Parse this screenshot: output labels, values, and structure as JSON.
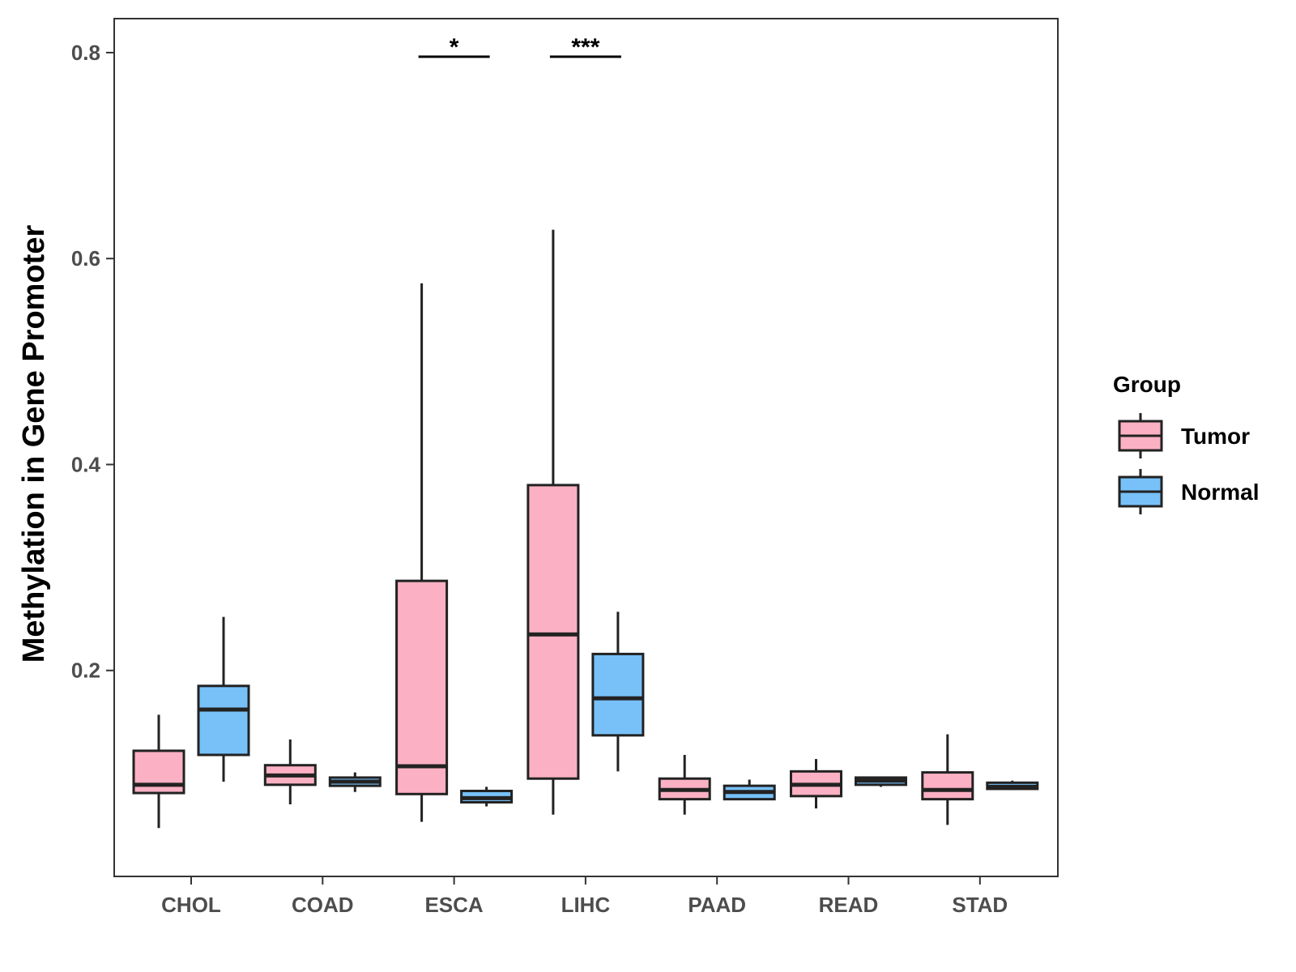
{
  "chart_data": {
    "type": "boxplot",
    "title": "",
    "xlabel": "",
    "ylabel": "Methylation in Gene Promoter",
    "ylim": [
      0.0,
      0.833
    ],
    "yticks": [
      "0.2",
      "0.4",
      "0.6",
      "0.8"
    ],
    "yticks_values": [
      0.2,
      0.4,
      0.6,
      0.8
    ],
    "categories": [
      "CHOL",
      "COAD",
      "ESCA",
      "LIHC",
      "PAAD",
      "READ",
      "STAD"
    ],
    "legend": {
      "title": "Group",
      "entries": [
        {
          "name": "Tumor",
          "color": "#FBB1C3"
        },
        {
          "name": "Normal",
          "color": "#77C1F8"
        }
      ]
    },
    "series": [
      {
        "name": "Tumor",
        "color": "#FBB1C3",
        "boxes": [
          {
            "category": "CHOL",
            "min": 0.047,
            "q1": 0.081,
            "median": 0.089,
            "q3": 0.122,
            "max": 0.157
          },
          {
            "category": "COAD",
            "min": 0.07,
            "q1": 0.089,
            "median": 0.098,
            "q3": 0.108,
            "max": 0.133
          },
          {
            "category": "ESCA",
            "min": 0.053,
            "q1": 0.08,
            "median": 0.107,
            "q3": 0.287,
            "max": 0.576
          },
          {
            "category": "LIHC",
            "min": 0.06,
            "q1": 0.095,
            "median": 0.235,
            "q3": 0.38,
            "max": 0.628
          },
          {
            "category": "PAAD",
            "min": 0.06,
            "q1": 0.075,
            "median": 0.084,
            "q3": 0.095,
            "max": 0.118
          },
          {
            "category": "READ",
            "min": 0.066,
            "q1": 0.078,
            "median": 0.089,
            "q3": 0.102,
            "max": 0.114
          },
          {
            "category": "STAD",
            "min": 0.05,
            "q1": 0.075,
            "median": 0.084,
            "q3": 0.101,
            "max": 0.138
          }
        ]
      },
      {
        "name": "Normal",
        "color": "#77C1F8",
        "boxes": [
          {
            "category": "CHOL",
            "min": 0.092,
            "q1": 0.118,
            "median": 0.162,
            "q3": 0.185,
            "max": 0.252
          },
          {
            "category": "COAD",
            "min": 0.082,
            "q1": 0.088,
            "median": 0.092,
            "q3": 0.096,
            "max": 0.101
          },
          {
            "category": "ESCA",
            "min": 0.068,
            "q1": 0.072,
            "median": 0.076,
            "q3": 0.083,
            "max": 0.087
          },
          {
            "category": "LIHC",
            "min": 0.102,
            "q1": 0.137,
            "median": 0.173,
            "q3": 0.216,
            "max": 0.257
          },
          {
            "category": "PAAD",
            "min": 0.074,
            "q1": 0.075,
            "median": 0.082,
            "q3": 0.088,
            "max": 0.094
          },
          {
            "category": "READ",
            "min": 0.087,
            "q1": 0.089,
            "median": 0.093,
            "q3": 0.096,
            "max": 0.097
          },
          {
            "category": "STAD",
            "min": 0.084,
            "q1": 0.085,
            "median": 0.087,
            "q3": 0.091,
            "max": 0.093
          }
        ]
      }
    ],
    "annotations": [
      {
        "category": "ESCA",
        "label": "*",
        "y": 0.796
      },
      {
        "category": "LIHC",
        "label": "***",
        "y": 0.796
      }
    ]
  }
}
